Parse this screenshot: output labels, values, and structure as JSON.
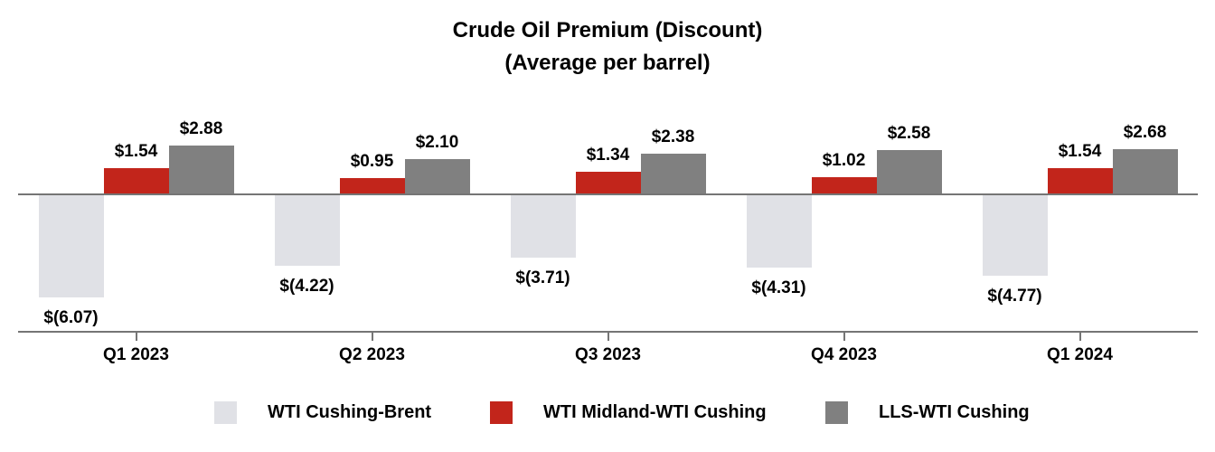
{
  "chart_data": {
    "type": "bar",
    "title": "Crude Oil Premium (Discount)",
    "subtitle": "(Average per barrel)",
    "categories": [
      "Q1 2023",
      "Q2 2023",
      "Q3 2023",
      "Q4 2023",
      "Q1 2024"
    ],
    "series": [
      {
        "name": "WTI Cushing-Brent",
        "color": "#E0E1E6",
        "values": [
          -6.07,
          -4.22,
          -3.71,
          -4.31,
          -4.77
        ],
        "labels": [
          "$(6.07)",
          "$(4.22)",
          "$(3.71)",
          "$(4.31)",
          "$(4.77)"
        ]
      },
      {
        "name": "WTI Midland-WTI Cushing",
        "color": "#C2251B",
        "values": [
          1.54,
          0.95,
          1.34,
          1.02,
          1.54
        ],
        "labels": [
          "$1.54",
          "$0.95",
          "$1.34",
          "$1.02",
          "$1.54"
        ]
      },
      {
        "name": "LLS-WTI Cushing",
        "color": "#808080",
        "values": [
          2.88,
          2.1,
          2.38,
          2.58,
          2.68
        ],
        "labels": [
          "$2.88",
          "$2.10",
          "$2.38",
          "$2.58",
          "$2.68"
        ]
      }
    ],
    "xlabel": "",
    "ylabel": "",
    "ylim": [
      -7,
      3.5
    ],
    "baseline": 0,
    "grid": false,
    "y_axis_visible": false,
    "data_labels": "outside-end",
    "legend_position": "bottom"
  },
  "axis_color": "#757575",
  "text_color": "#000000",
  "background_color": "#FFFFFF"
}
